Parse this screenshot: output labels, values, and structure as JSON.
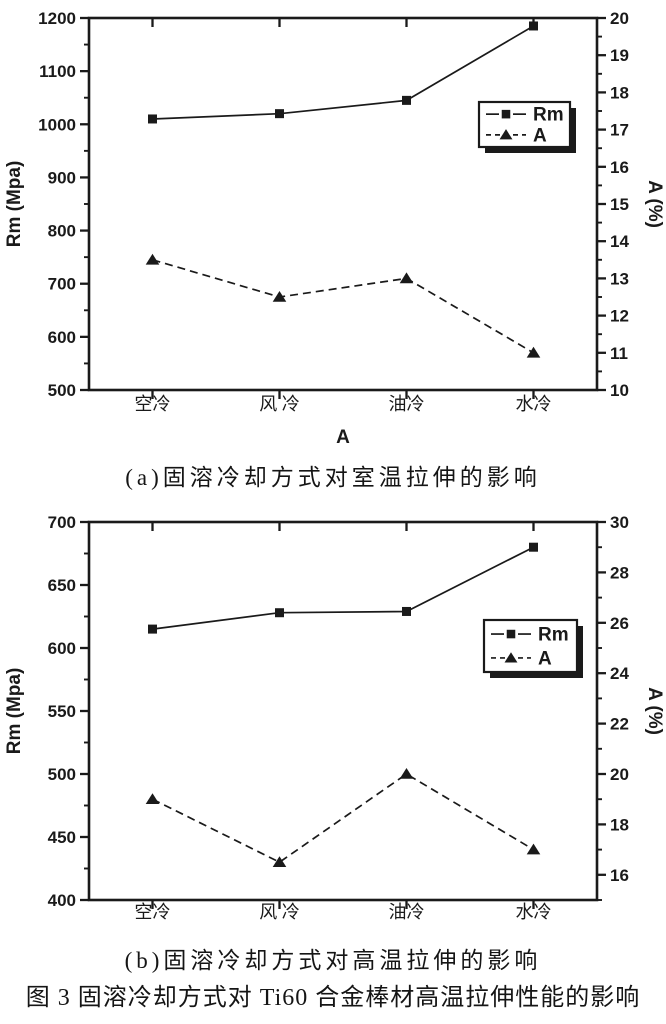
{
  "figure": {
    "captions": {
      "a": "(a)固溶冷却方式对室温拉伸的影响",
      "b": "(b)固溶冷却方式对高温拉伸的影响",
      "figure": "图 3 固溶冷却方式对 Ti60 合金棒材高温拉伸性能的影响"
    }
  },
  "colors": {
    "ink": "#1a1a1a",
    "paper": "#ffffff"
  },
  "chart_data": [
    {
      "id": "a",
      "type": "line",
      "title": "",
      "categories": [
        "空冷",
        "风 冷",
        "油冷",
        "水冷"
      ],
      "x_axis": {
        "label": "A"
      },
      "y_left": {
        "label": "Rm (Mpa)",
        "min": 500,
        "max": 1200,
        "major_step": 100,
        "minor_step": 50
      },
      "y_right": {
        "label": "A (%)",
        "min": 10,
        "max": 20,
        "major_step": 1,
        "minor_step": 0.5
      },
      "grid": false,
      "series": [
        {
          "name": "Rm",
          "axis": "left",
          "marker": "square",
          "line_style": "solid",
          "values": [
            1010,
            1020,
            1045,
            1185
          ]
        },
        {
          "name": "A",
          "axis": "right",
          "marker": "triangle",
          "line_style": "dashed",
          "values": [
            13.5,
            12.5,
            13,
            11
          ]
        }
      ],
      "legend": {
        "position": "middle-right",
        "entries": [
          "Rm",
          "A"
        ]
      }
    },
    {
      "id": "b",
      "type": "line",
      "title": "",
      "categories": [
        "空冷",
        "风 冷",
        "油冷",
        "水冷"
      ],
      "x_axis": {
        "label": ""
      },
      "y_left": {
        "label": "Rm (Mpa)",
        "min": 400,
        "max": 700,
        "major_step": 50,
        "minor_step": 25
      },
      "y_right": {
        "label": "A (%)",
        "min": 15,
        "max": 30,
        "major_step": 2,
        "minor_step": 1
      },
      "grid": false,
      "series": [
        {
          "name": "Rm",
          "axis": "left",
          "marker": "square",
          "line_style": "solid",
          "values": [
            615,
            628,
            629,
            680
          ]
        },
        {
          "name": "A",
          "axis": "right",
          "marker": "triangle",
          "line_style": "dashed",
          "values": [
            19,
            16.5,
            20,
            17
          ]
        }
      ],
      "legend": {
        "position": "middle-right",
        "entries": [
          "Rm",
          "A"
        ]
      }
    }
  ]
}
